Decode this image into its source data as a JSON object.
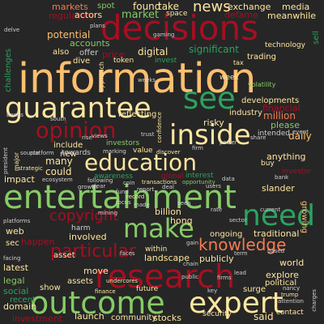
{
  "background": "#262626",
  "palette": {
    "red": "#a50f22",
    "orange": "#f47b52",
    "light_orange": "#fdbf6f",
    "cream": "#fee6a0",
    "light_green": "#86cb66",
    "green": "#2ca25f",
    "dark_green": "#1f7a3d",
    "grey": "#cfcfcf"
  },
  "words": [
    {
      "text": "information"
    },
    {
      "text": "decisions"
    },
    {
      "text": "entertainment"
    },
    {
      "text": "research"
    },
    {
      "text": "guarantee"
    },
    {
      "text": "outcome"
    },
    {
      "text": "expert"
    },
    {
      "text": "inside"
    },
    {
      "text": "education"
    },
    {
      "text": "opinion"
    },
    {
      "text": "need"
    },
    {
      "text": "make"
    },
    {
      "text": "see"
    },
    {
      "text": "knowledge"
    },
    {
      "text": "particular"
    },
    {
      "text": "copyright"
    },
    {
      "text": "news"
    },
    {
      "text": "market"
    },
    {
      "text": "exchange"
    },
    {
      "text": "media"
    },
    {
      "text": "defame"
    },
    {
      "text": "meanwhile"
    },
    {
      "text": "markets"
    },
    {
      "text": "spot"
    },
    {
      "text": "found"
    },
    {
      "text": "take"
    },
    {
      "text": "regulatory"
    },
    {
      "text": "actors"
    },
    {
      "text": "space"
    },
    {
      "text": "potential"
    },
    {
      "text": "accounts"
    },
    {
      "text": "significant"
    },
    {
      "text": "also"
    },
    {
      "text": "offer"
    },
    {
      "text": "price"
    },
    {
      "text": "digital"
    },
    {
      "text": "dive"
    },
    {
      "text": "token"
    },
    {
      "text": "invest"
    },
    {
      "text": "trading"
    },
    {
      "text": "technology"
    },
    {
      "text": "week"
    },
    {
      "text": "financial"
    },
    {
      "text": "million"
    },
    {
      "text": "please"
    },
    {
      "text": "daily"
    },
    {
      "text": "reflecting"
    },
    {
      "text": "industry"
    },
    {
      "text": "developments"
    },
    {
      "text": "risky"
    },
    {
      "text": "intended"
    },
    {
      "text": "include"
    },
    {
      "text": "investors"
    },
    {
      "text": "value"
    },
    {
      "text": "anything"
    },
    {
      "text": "many"
    },
    {
      "text": "new"
    },
    {
      "text": "towards"
    },
    {
      "text": "awareness"
    },
    {
      "text": "could"
    },
    {
      "text": "impact"
    },
    {
      "text": "interest"
    },
    {
      "text": "global"
    },
    {
      "text": "buy"
    },
    {
      "text": "investor"
    },
    {
      "text": "slander"
    },
    {
      "text": "growing"
    },
    {
      "text": "billion"
    },
    {
      "text": "hong"
    },
    {
      "text": "web"
    },
    {
      "text": "harm"
    },
    {
      "text": "involved"
    },
    {
      "text": "sec"
    },
    {
      "text": "happen"
    },
    {
      "text": "landscape"
    },
    {
      "text": "publicly"
    },
    {
      "text": "ongoing"
    },
    {
      "text": "traditional"
    },
    {
      "text": "asset"
    },
    {
      "text": "move"
    },
    {
      "text": "within"
    },
    {
      "text": "explore"
    },
    {
      "text": "world"
    },
    {
      "text": "legal"
    },
    {
      "text": "political"
    },
    {
      "text": "latest"
    },
    {
      "text": "assets"
    },
    {
      "text": "social"
    },
    {
      "text": "show"
    },
    {
      "text": "future"
    },
    {
      "text": "surge"
    },
    {
      "text": "recent"
    },
    {
      "text": "domain"
    },
    {
      "text": "investment"
    },
    {
      "text": "launch"
    },
    {
      "text": "community"
    },
    {
      "text": "stocks"
    },
    {
      "text": "security"
    },
    {
      "text": "said"
    },
    {
      "text": "contact"
    },
    {
      "text": "opportunity"
    },
    {
      "text": "challenges"
    },
    {
      "text": "approach"
    },
    {
      "text": "volatility"
    },
    {
      "text": "sell"
    },
    {
      "text": "tax"
    },
    {
      "text": "major"
    },
    {
      "text": "faces"
    },
    {
      "text": "data"
    },
    {
      "text": "record"
    },
    {
      "text": "seen"
    },
    {
      "text": "made"
    },
    {
      "text": "gain"
    },
    {
      "text": "rise"
    },
    {
      "text": "report"
    },
    {
      "text": "users"
    },
    {
      "text": "lead"
    },
    {
      "text": "fund"
    },
    {
      "text": "firms"
    },
    {
      "text": "source"
    },
    {
      "text": "strategic"
    },
    {
      "text": "platform"
    },
    {
      "text": "deal"
    },
    {
      "text": "focus"
    },
    {
      "text": "term"
    },
    {
      "text": "based"
    },
    {
      "text": "chain"
    },
    {
      "text": "trust"
    },
    {
      "text": "power"
    },
    {
      "text": "share"
    },
    {
      "text": "growth"
    },
    {
      "text": "rate"
    },
    {
      "text": "mining"
    },
    {
      "text": "banks"
    },
    {
      "text": "sector"
    },
    {
      "text": "public"
    },
    {
      "text": "clear"
    },
    {
      "text": "coin"
    },
    {
      "text": "key"
    },
    {
      "text": "current"
    },
    {
      "text": "event"
    },
    {
      "text": "ecosystem"
    },
    {
      "text": "confidence"
    },
    {
      "text": "firm"
    },
    {
      "text": "bank"
    },
    {
      "text": "following"
    },
    {
      "text": "transactions"
    },
    {
      "text": "discover"
    },
    {
      "text": "marking"
    },
    {
      "text": "finance"
    },
    {
      "text": "undercores"
    },
    {
      "text": "nancy"
    },
    {
      "text": "trump"
    },
    {
      "text": "attention"
    },
    {
      "text": "president"
    },
    {
      "text": "plans"
    },
    {
      "text": "gaming"
    },
    {
      "text": "delve"
    },
    {
      "text": "views"
    },
    {
      "text": "weeks"
    },
    {
      "text": "south"
    },
    {
      "text": "charges"
    },
    {
      "text": "facing"
    },
    {
      "text": "platforms"
    }
  ]
}
